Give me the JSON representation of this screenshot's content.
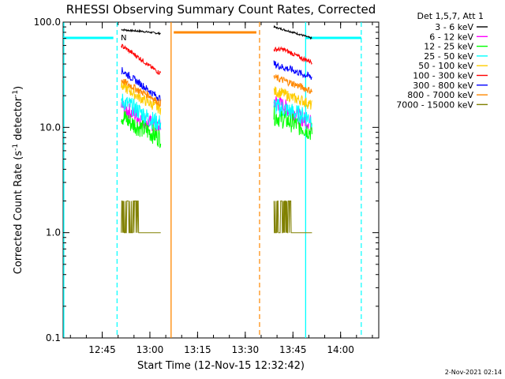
{
  "chart_data": {
    "type": "line",
    "title": "RHESSI Observing Summary Count Rates, Corrected",
    "xlabel": "Start Time (12-Nov-15 12:32:42)",
    "ylabel_main": "Corrected Count Rate (s",
    "ylabel_sup1": "-1",
    "ylabel_mid": " detector",
    "ylabel_sup2": "-1",
    "ylabel_end": ")",
    "y_scale": "log",
    "ylim": [
      0.1,
      100
    ],
    "xlim": [
      "12:32:42",
      "14:12:00"
    ],
    "x_ticks": [
      "12:45",
      "13:00",
      "13:15",
      "13:30",
      "13:45",
      "14:00"
    ],
    "y_ticks": [
      "0.1",
      "1.0",
      "10.0",
      "100.0"
    ],
    "legend_position": "top-right",
    "legend_title": "Det 1,5,7, Att 1",
    "series": [
      {
        "name": "3 - 6 keV",
        "color": "#000000",
        "x": [
          "12:51",
          "12:54",
          "12:57",
          "13:00",
          "13:03",
          "13:39",
          "13:42",
          "13:45",
          "13:48",
          "13:51"
        ],
        "values": [
          85,
          83,
          82,
          80,
          78,
          90,
          85,
          80,
          75,
          70
        ]
      },
      {
        "name": "6 - 12 keV",
        "color": "#ff00ff",
        "x": [
          "12:51",
          "12:54",
          "12:57",
          "13:00",
          "13:03",
          "13:39",
          "13:42",
          "13:45",
          "13:48",
          "13:51"
        ],
        "values": [
          16,
          14,
          12,
          11,
          10,
          18,
          16,
          14,
          12,
          11
        ]
      },
      {
        "name": "12 - 25 keV",
        "color": "#00ff00",
        "x": [
          "12:51",
          "12:54",
          "12:57",
          "13:00",
          "13:03",
          "13:39",
          "13:42",
          "13:45",
          "13:48",
          "13:51"
        ],
        "values": [
          13,
          11,
          10,
          9,
          8,
          13,
          12,
          11,
          10,
          9
        ]
      },
      {
        "name": "25 - 50 keV",
        "color": "#00ffff",
        "x": [
          "12:51",
          "12:54",
          "12:57",
          "13:00",
          "13:03",
          "13:39",
          "13:42",
          "13:45",
          "13:48",
          "13:51"
        ],
        "values": [
          18,
          16,
          14,
          12,
          11,
          16,
          15,
          14,
          13,
          12
        ]
      },
      {
        "name": "50 - 100 keV",
        "color": "#ffcc00",
        "x": [
          "12:51",
          "12:54",
          "12:57",
          "13:00",
          "13:03",
          "13:39",
          "13:42",
          "13:45",
          "13:48",
          "13:51"
        ],
        "values": [
          25,
          22,
          19,
          17,
          15,
          22,
          21,
          19,
          18,
          16
        ]
      },
      {
        "name": "100 - 300 keV",
        "color": "#ff0000",
        "x": [
          "12:51",
          "12:54",
          "12:57",
          "13:00",
          "13:03",
          "13:39",
          "13:42",
          "13:45",
          "13:48",
          "13:51"
        ],
        "values": [
          60,
          52,
          45,
          38,
          33,
          55,
          55,
          50,
          45,
          42
        ]
      },
      {
        "name": "300 - 800 keV",
        "color": "#0000ff",
        "x": [
          "12:51",
          "12:54",
          "12:57",
          "13:00",
          "13:03",
          "13:39",
          "13:42",
          "13:45",
          "13:48",
          "13:51"
        ],
        "values": [
          35,
          30,
          26,
          22,
          19,
          40,
          37,
          35,
          32,
          30
        ]
      },
      {
        "name": "800 - 7000 keV",
        "color": "#ff8800",
        "x": [
          "12:51",
          "12:54",
          "12:57",
          "13:00",
          "13:03",
          "13:39",
          "13:42",
          "13:45",
          "13:48",
          "13:51"
        ],
        "values": [
          28,
          25,
          22,
          20,
          17,
          30,
          28,
          26,
          24,
          22
        ]
      },
      {
        "name": "7000 - 15000 keV",
        "color": "#808000",
        "x": [
          "12:51",
          "12:54",
          "12:57",
          "13:00",
          "13:03",
          "13:39",
          "13:42",
          "13:45",
          "13:48",
          "13:51"
        ],
        "values": [
          1.5,
          1.5,
          1.5,
          1.4,
          1.0,
          1.6,
          1.4,
          1.0,
          1.0,
          1.0
        ]
      }
    ],
    "annotations": {
      "flag_text": "N"
    }
  },
  "footer": {
    "timestamp": "2-Nov-2021 02:14"
  },
  "colors": {
    "saa_line": "#00ffff",
    "night_line": "#ff8800"
  }
}
